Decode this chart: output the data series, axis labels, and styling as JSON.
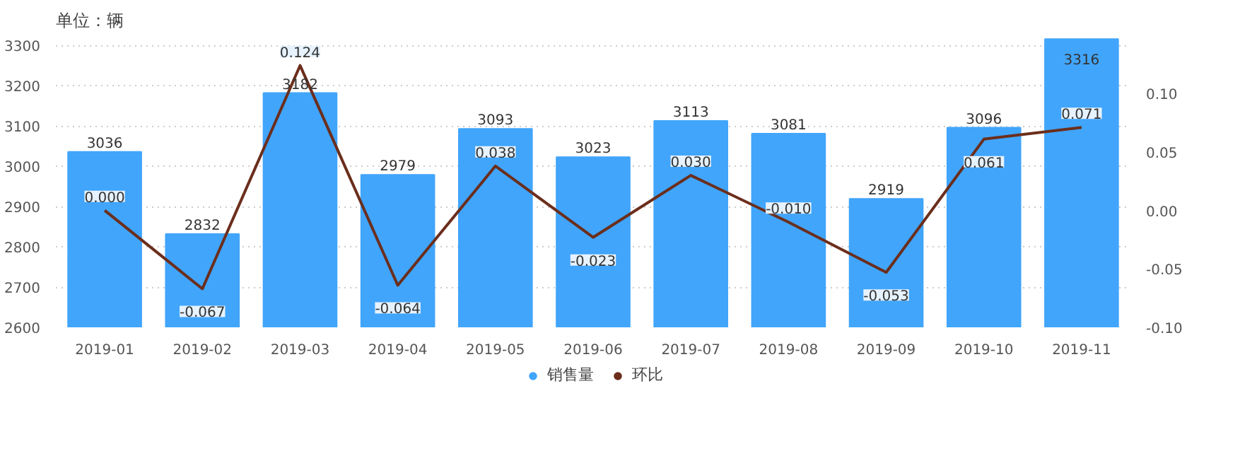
{
  "chart_data": {
    "type": "bar",
    "title": "单位：辆",
    "categories": [
      "2019-01",
      "2019-02",
      "2019-03",
      "2019-04",
      "2019-05",
      "2019-06",
      "2019-07",
      "2019-08",
      "2019-09",
      "2019-10",
      "2019-11"
    ],
    "series": [
      {
        "name": "销售量",
        "color": "#41a5fb",
        "values": [
          3036,
          2832,
          3182,
          2979,
          3093,
          3023,
          3113,
          3081,
          2919,
          3096,
          3316
        ]
      },
      {
        "name": "环比",
        "type": "line",
        "axis": "y2",
        "color": "#6b2e1c",
        "values": [
          0.0,
          -0.067,
          0.124,
          -0.064,
          0.038,
          -0.023,
          0.03,
          -0.01,
          -0.053,
          0.061,
          0.071
        ],
        "value_labels": [
          "0.000",
          "-0.067",
          "0.124",
          "-0.064",
          "0.038",
          "-0.023",
          "0.030",
          "-0.010",
          "-0.053",
          "0.061",
          "0.071"
        ]
      }
    ],
    "ylim": [
      2600,
      3320
    ],
    "yticks": [
      2600,
      2700,
      2800,
      2900,
      3000,
      3100,
      3200,
      3300
    ],
    "y2lim": [
      -0.1,
      0.148
    ],
    "y2ticks": [
      {
        "value": -0.1,
        "label": "-0.10"
      },
      {
        "value": -0.05,
        "label": "-0.05"
      },
      {
        "value": 0,
        "label": "0.00"
      },
      {
        "value": 0.05,
        "label": "0.05"
      },
      {
        "value": 0.1,
        "label": "0.10"
      }
    ],
    "data_labels": true,
    "grid": "y",
    "legend": "bottom",
    "marker": "none",
    "line_style": "solid"
  }
}
